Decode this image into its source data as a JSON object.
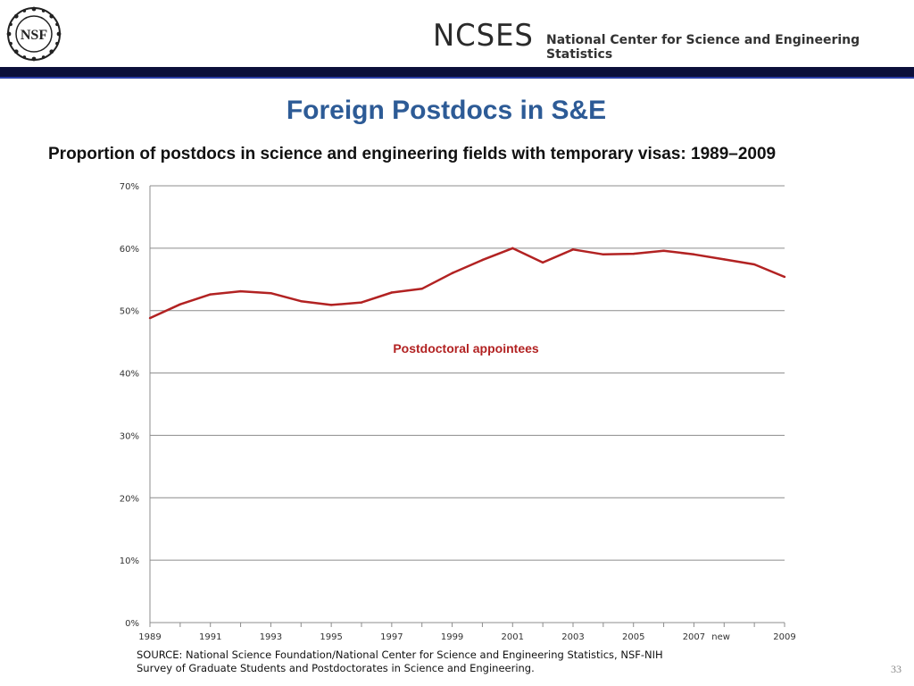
{
  "header": {
    "logo_text": "NSF",
    "org_short": "NCSES",
    "org_full": "National Center for Science and Engineering Statistics"
  },
  "slide": {
    "title": "Foreign Postdocs in S&E",
    "subtitle": "Proportion of postdocs in science and engineering fields with temporary visas: 1989–2009",
    "page_number": "33"
  },
  "source": {
    "line1": "SOURCE:  National Science Foundation/National Center for Science and Engineering Statistics, NSF-NIH",
    "line2": "Survey of Graduate Students and Postdoctorates in Science and Engineering."
  },
  "chart_data": {
    "type": "line",
    "title": "",
    "xlabel": "",
    "ylabel": "",
    "ylim": [
      0,
      70
    ],
    "yticks": [
      "0%",
      "10%",
      "20%",
      "30%",
      "40%",
      "50%",
      "60%",
      "70%"
    ],
    "grid": true,
    "line_color": "#b22222",
    "categories": [
      "1989",
      "1990",
      "1991",
      "1992",
      "1993",
      "1994",
      "1995",
      "1996",
      "1997",
      "1998",
      "1999",
      "2000",
      "2001",
      "2002",
      "2003",
      "2004",
      "2005",
      "2006",
      "2007",
      "2007new",
      "2008",
      "2009"
    ],
    "xtick_labels": [
      "1989",
      "",
      "1991",
      "",
      "1993",
      "",
      "1995",
      "",
      "1997",
      "",
      "1999",
      "",
      "2001",
      "",
      "2003",
      "",
      "2005",
      "",
      "2007",
      "new",
      "",
      "2009"
    ],
    "series": [
      {
        "name": "Postdoctoral appointees",
        "values": [
          48.8,
          51.0,
          52.6,
          53.1,
          52.8,
          51.5,
          50.9,
          51.3,
          52.9,
          53.5,
          56.0,
          58.1,
          60.0,
          57.7,
          59.8,
          59.0,
          59.1,
          59.6,
          59.0,
          58.2,
          57.4,
          55.4
        ]
      }
    ]
  }
}
